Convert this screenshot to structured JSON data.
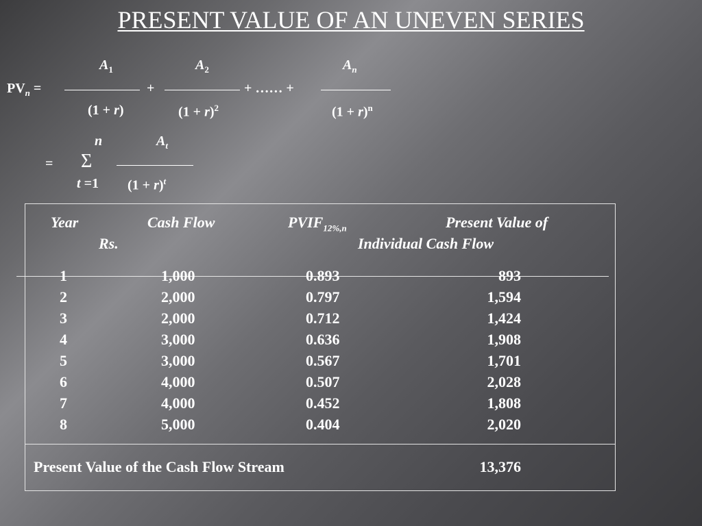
{
  "title": "PRESENT VALUE OF AN UNEVEN SERIES",
  "formula": {
    "lhs": "PV",
    "lhs_sub": "n",
    "equals": "=",
    "a1": "A",
    "a1_sub": "1",
    "a2": "A",
    "a2_sub": "2",
    "an": "A",
    "an_sub": "n",
    "plus": "+",
    "ellipsis": "+  ……  +",
    "den1_pre": "(1 + ",
    "den_r": "r",
    "den1_post": ")",
    "den2_post": ")",
    "den2_exp": "2",
    "denn_post": ")",
    "denn_exp": "n",
    "sum_equals": "=",
    "sigma": "Σ",
    "sum_upper": "n",
    "sum_lower_t": "t",
    "sum_lower_rest": " =1",
    "at": "A",
    "at_sub": "t",
    "dent_exp": "t"
  },
  "table": {
    "headers": {
      "year": "Year",
      "cash_flow": "Cash Flow",
      "cash_flow_unit": "Rs.",
      "pvif": "PVIF",
      "pvif_sub": "12%,n",
      "pv_line1": "Present Value of",
      "pv_line2": "Individual Cash Flow"
    },
    "rows": [
      {
        "year": "1",
        "cash_flow": "1,000",
        "pvif": "0.893",
        "pv": "893"
      },
      {
        "year": "2",
        "cash_flow": "2,000",
        "pvif": "0.797",
        "pv": "1,594"
      },
      {
        "year": "3",
        "cash_flow": "2,000",
        "pvif": "0.712",
        "pv": "1,424"
      },
      {
        "year": "4",
        "cash_flow": "3,000",
        "pvif": "0.636",
        "pv": "1,908"
      },
      {
        "year": "5",
        "cash_flow": "3,000",
        "pvif": "0.567",
        "pv": "1,701"
      },
      {
        "year": "6",
        "cash_flow": "4,000",
        "pvif": "0.507",
        "pv": "2,028"
      },
      {
        "year": "7",
        "cash_flow": "4,000",
        "pvif": "0.452",
        "pv": "1,808"
      },
      {
        "year": "8",
        "cash_flow": "5,000",
        "pvif": "0.404",
        "pv": "2,020"
      }
    ],
    "total_label": "Present Value of the Cash Flow Stream",
    "total_value": "13,376"
  }
}
